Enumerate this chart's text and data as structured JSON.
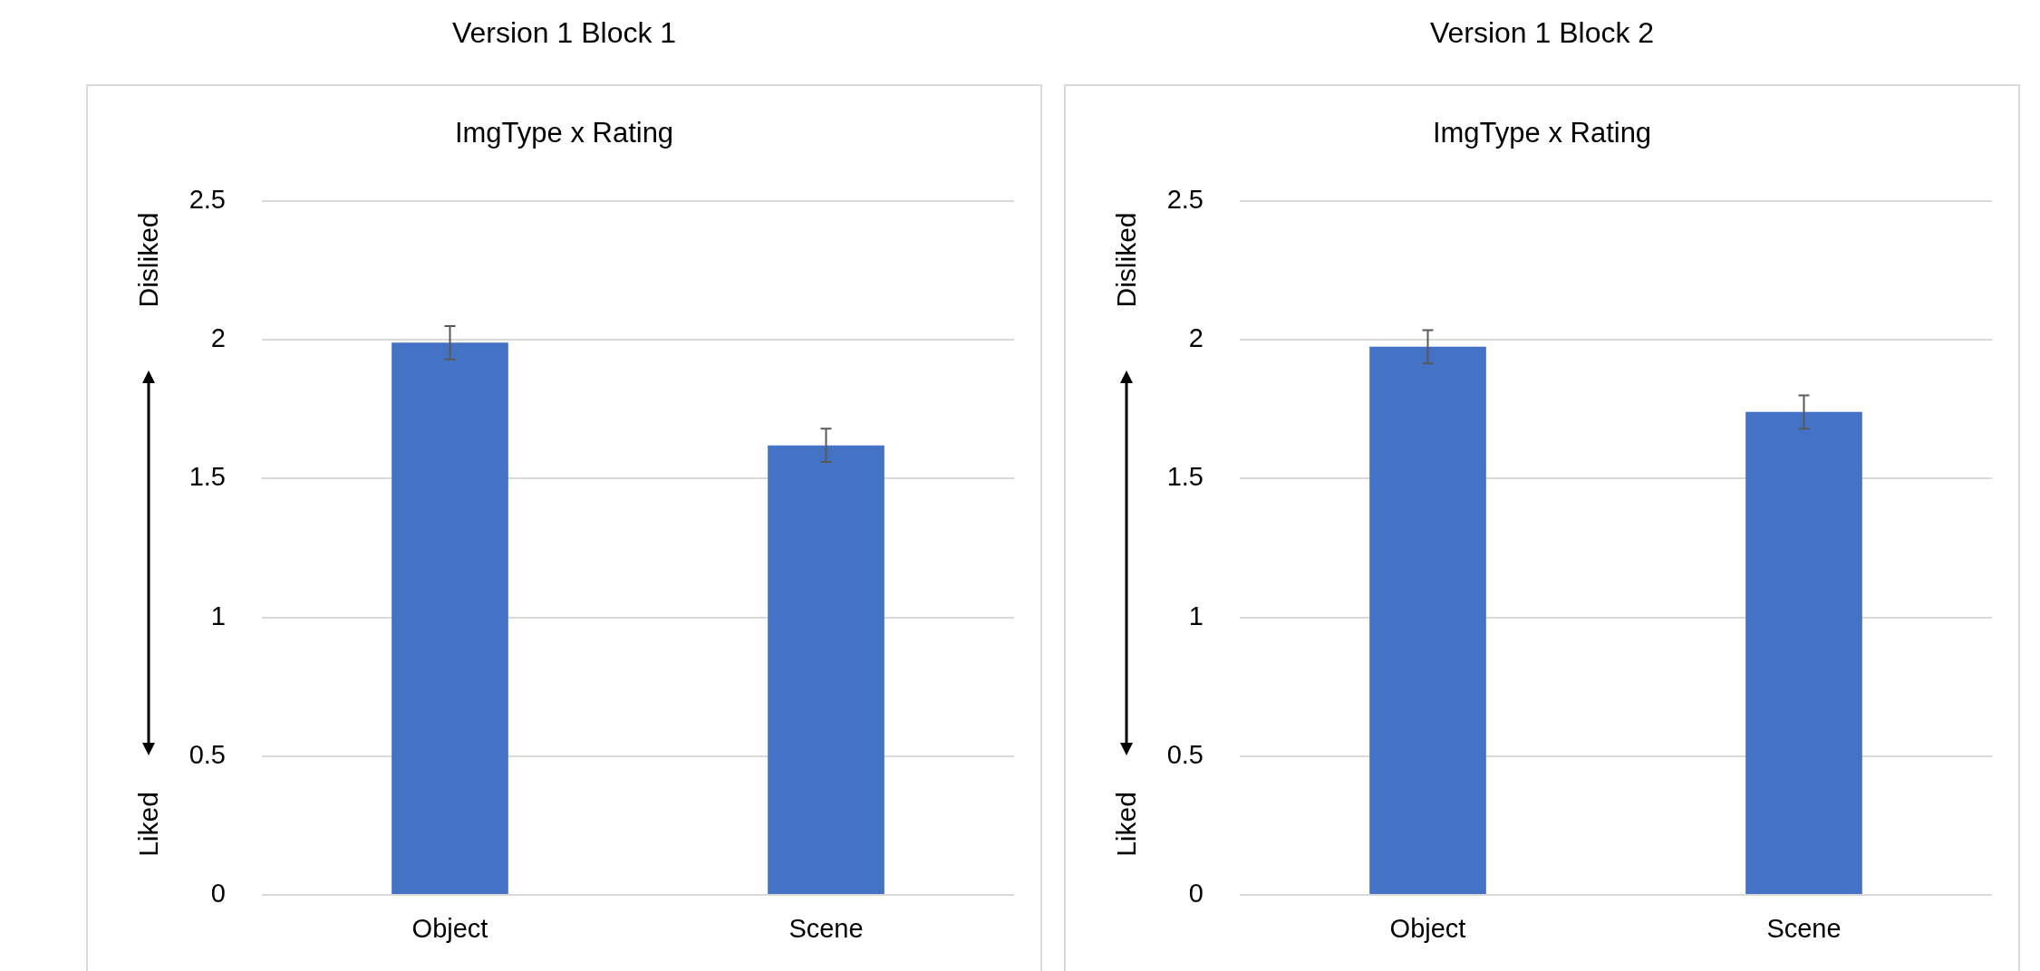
{
  "chart_data": [
    {
      "type": "bar",
      "title": "Version 1 Block 1",
      "subtitle": "ImgType x Rating",
      "annotations": [
        "Disliked",
        "Liked"
      ],
      "categories": [
        "Object",
        "Scene"
      ],
      "values": [
        1.99,
        1.62
      ],
      "errors": [
        0.06,
        0.06
      ],
      "color": "#4472c4",
      "ylim": [
        0,
        2.5
      ],
      "yticks": [
        0,
        0.5,
        1,
        1.5,
        2,
        2.5
      ],
      "grid": "y"
    },
    {
      "type": "bar",
      "title": "Version 1 Block 2",
      "subtitle": "ImgType x Rating",
      "annotations": [
        "Disliked",
        "Liked"
      ],
      "categories": [
        "Object",
        "Scene"
      ],
      "values": [
        1.975,
        1.74
      ],
      "errors": [
        0.06,
        0.06
      ],
      "color": "#4472c4",
      "ylim": [
        0,
        2.5
      ],
      "yticks": [
        0,
        0.5,
        1,
        1.5,
        2,
        2.5
      ],
      "grid": "y"
    }
  ]
}
